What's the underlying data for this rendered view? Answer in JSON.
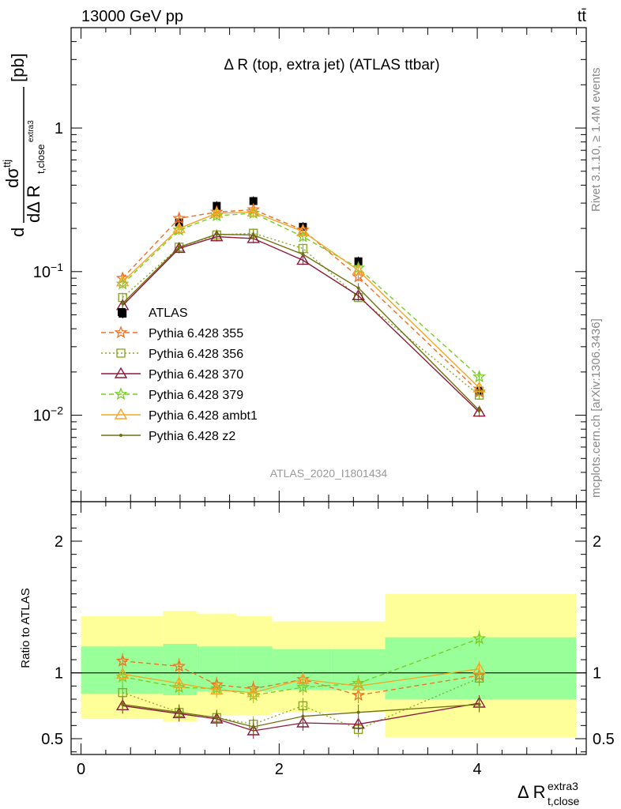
{
  "header": {
    "process": "13000 GeV pp",
    "final_state": "tt̄"
  },
  "side_labels": {
    "rivet": "Rivet 3.1.10, ≥ 1.4M events",
    "source": "mcplots.cern.ch [arXiv:1306.3436]"
  },
  "analysis_id": "ATLAS_2020_I1801434",
  "colors": {
    "data": "#000000",
    "p355": "#f07020",
    "p356": "#88aa22",
    "p370": "#8b1a3a",
    "p379": "#77cc22",
    "ambt1": "#f5a623",
    "z2": "#707010",
    "band_inner": "#99ff99",
    "band_outer": "#ffff99"
  },
  "chart_data": [
    {
      "type": "line",
      "title": "Δ R (top, extra jet) (ATLAS ttbar)",
      "ylabel": "dσ^ttj / dΔ R_t,close^extra3 [pb]",
      "xlabel": "Δ R_t,close^extra3",
      "yscale": "log",
      "xlim": [
        -0.1,
        5.1
      ],
      "ylim": [
        0.0025,
        5
      ],
      "x_ticks": [
        "0",
        "2",
        "4"
      ],
      "y_ticks": [
        "10^-2",
        "10^-1",
        "1"
      ],
      "x": [
        0.42,
        0.99,
        1.37,
        1.74,
        2.24,
        2.8,
        4.02
      ],
      "series": [
        {
          "name": "ATLAS",
          "key": "data",
          "marker": "square",
          "values": [
            0.051,
            0.22,
            0.287,
            0.31,
            0.205,
            0.118,
            0.0148
          ]
        },
        {
          "name": "Pythia 6.428 355",
          "key": "p355",
          "marker": "star",
          "dash": "dashed",
          "values": [
            0.09,
            0.235,
            0.26,
            0.27,
            0.195,
            0.092,
            0.0145
          ]
        },
        {
          "name": "Pythia 6.428 356",
          "key": "p356",
          "marker": "open-square",
          "dash": "dotted",
          "values": [
            0.066,
            0.148,
            0.18,
            0.185,
            0.145,
            0.066,
            0.0138
          ]
        },
        {
          "name": "Pythia 6.428 370",
          "key": "p370",
          "marker": "open-triangle",
          "dash": "solid",
          "values": [
            0.058,
            0.145,
            0.175,
            0.17,
            0.12,
            0.068,
            0.0105
          ]
        },
        {
          "name": "Pythia 6.428 379",
          "key": "p379",
          "marker": "star",
          "dash": "dashed",
          "values": [
            0.082,
            0.195,
            0.245,
            0.255,
            0.175,
            0.106,
            0.0185
          ]
        },
        {
          "name": "Pythia 6.428 ambt1",
          "key": "ambt1",
          "marker": "open-triangle",
          "dash": "solid",
          "values": [
            0.085,
            0.2,
            0.255,
            0.26,
            0.19,
            0.102,
            0.0155
          ]
        },
        {
          "name": "Pythia 6.428 z2",
          "key": "z2",
          "marker": "dot",
          "dash": "solid",
          "values": [
            0.06,
            0.148,
            0.182,
            0.18,
            0.132,
            0.077,
            0.0108
          ]
        }
      ]
    },
    {
      "type": "line",
      "ylabel": "Ratio to ATLAS",
      "xlabel": "Δ R_t,close^extra3",
      "xlim": [
        -0.1,
        5.1
      ],
      "ylim": [
        0.38,
        2.3
      ],
      "x_ticks": [
        "0",
        "2",
        "4"
      ],
      "y_ticks": [
        "0.5",
        "1",
        "2"
      ],
      "bins": [
        {
          "lo": 0.0,
          "hi": 0.83,
          "inner": [
            0.84,
            1.2
          ],
          "outer": [
            0.65,
            1.43
          ]
        },
        {
          "lo": 0.83,
          "hi": 1.17,
          "inner": [
            0.83,
            1.22
          ],
          "outer": [
            0.63,
            1.47
          ]
        },
        {
          "lo": 1.17,
          "hi": 1.57,
          "inner": [
            0.86,
            1.2
          ],
          "outer": [
            0.68,
            1.45
          ]
        },
        {
          "lo": 1.57,
          "hi": 1.93,
          "inner": [
            0.86,
            1.2
          ],
          "outer": [
            0.68,
            1.43
          ]
        },
        {
          "lo": 1.93,
          "hi": 2.53,
          "inner": [
            0.87,
            1.18
          ],
          "outer": [
            0.7,
            1.39
          ]
        },
        {
          "lo": 2.53,
          "hi": 3.07,
          "inner": [
            0.87,
            1.18
          ],
          "outer": [
            0.7,
            1.39
          ]
        },
        {
          "lo": 3.07,
          "hi": 5.0,
          "inner": [
            0.8,
            1.27
          ],
          "outer": [
            0.51,
            1.6
          ]
        }
      ],
      "x": [
        0.42,
        0.99,
        1.37,
        1.74,
        2.24,
        2.8,
        4.02
      ],
      "series": [
        {
          "name": "Pythia 6.428 355",
          "key": "p355",
          "values": [
            1.09,
            1.05,
            0.91,
            0.88,
            0.95,
            0.83,
            0.98
          ]
        },
        {
          "name": "Pythia 6.428 356",
          "key": "p356",
          "values": [
            0.85,
            0.7,
            0.66,
            0.61,
            0.75,
            0.57,
            0.96
          ]
        },
        {
          "name": "Pythia 6.428 370",
          "key": "p370",
          "values": [
            0.75,
            0.69,
            0.65,
            0.56,
            0.62,
            0.61,
            0.77
          ]
        },
        {
          "name": "Pythia 6.428 379",
          "key": "p379",
          "values": [
            0.97,
            0.89,
            0.88,
            0.83,
            0.89,
            0.92,
            1.26
          ]
        },
        {
          "name": "Pythia 6.428 ambt1",
          "key": "ambt1",
          "values": [
            0.99,
            0.92,
            0.87,
            0.85,
            0.95,
            0.9,
            1.03
          ]
        },
        {
          "name": "Pythia 6.428 z2",
          "key": "z2",
          "values": [
            0.76,
            0.7,
            0.66,
            0.59,
            0.67,
            0.7,
            0.76
          ]
        }
      ]
    }
  ]
}
